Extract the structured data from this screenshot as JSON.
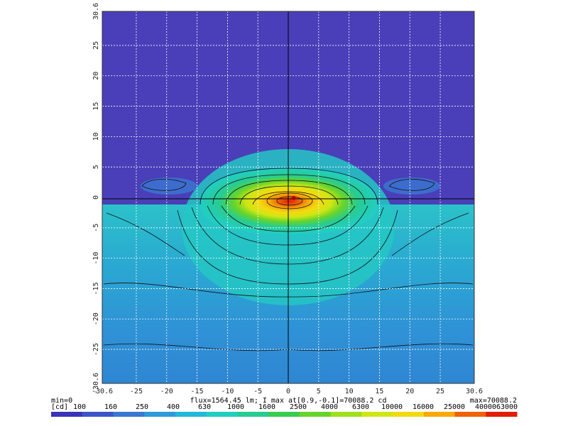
{
  "chart_data": {
    "type": "heatmap",
    "title": "",
    "xlabel": "",
    "ylabel": "",
    "xlim": [
      -30.6,
      30.6
    ],
    "ylim": [
      -30.6,
      30.6
    ],
    "grid": true,
    "x_ticks": [
      "-30.6",
      "-25",
      "-20",
      "-15",
      "-10",
      "-5",
      "0",
      "5",
      "10",
      "15",
      "20",
      "25",
      "30.6"
    ],
    "y_ticks": [
      "30.6",
      "25",
      "20",
      "15",
      "10",
      "5",
      "0",
      "-5",
      "-10",
      "-15",
      "-20",
      "-25",
      "-30.6"
    ],
    "x_tick_values": [
      -30.6,
      -25,
      -20,
      -15,
      -10,
      -5,
      0,
      5,
      10,
      15,
      20,
      25,
      30.6
    ],
    "y_tick_values": [
      30.6,
      25,
      20,
      15,
      10,
      5,
      0,
      -5,
      -10,
      -15,
      -20,
      -25,
      -30.6
    ],
    "peak": {
      "x": 0.9,
      "y": -0.1,
      "value": 70088.2
    },
    "info": {
      "min_label": "min=0",
      "max_label": "max=70088.2",
      "flux_label": "flux=1564.45 lm; I max at[0.9,-0.1]=70088.2 cd"
    },
    "colorbar": {
      "unit": "[cd]",
      "labels": [
        "100",
        "160",
        "250",
        "400",
        "630",
        "1000",
        "1600",
        "2500",
        "4000",
        "6300",
        "10000",
        "16000",
        "25000",
        "40000",
        "63000"
      ],
      "colors": [
        "#3b33b8",
        "#3a55c8",
        "#3a78d2",
        "#2f9ad8",
        "#22b8d8",
        "#22cdc2",
        "#28cc90",
        "#38cc52",
        "#66d42c",
        "#9ee01c",
        "#d0e614",
        "#f2da10",
        "#f7aa08",
        "#f06206",
        "#e21c06"
      ]
    },
    "colors": {
      "background_top": "#4a3fb8",
      "background_low": "#31b3c9",
      "contour": "#111111",
      "axis_line": "#000000",
      "grid_line": "#ffffff"
    }
  }
}
